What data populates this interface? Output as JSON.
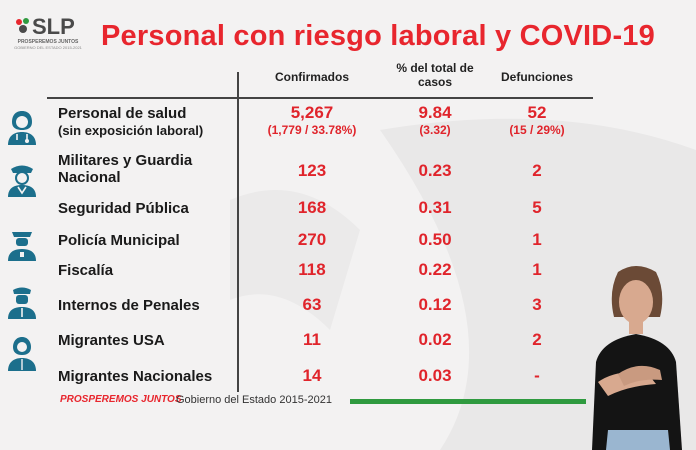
{
  "title": "Personal con riesgo laboral y COVID-19",
  "logo": {
    "name": "SLP",
    "tagline": "PROSPEREMOS JUNTOS",
    "subline": "GOBIERNO DEL ESTADO 2015-2021"
  },
  "columns": {
    "confirmados": "Confirmados",
    "porcentaje": "% del total de casos",
    "defunciones": "Defunciones"
  },
  "rows": [
    {
      "label": "Personal de salud",
      "sublabel": "(sin exposición laboral)",
      "confirmados": "5,267",
      "confirmados_sub": "(1,779 / 33.78%)",
      "porcentaje": "9.84",
      "porcentaje_sub": "(3.32)",
      "defunciones": "52",
      "defunciones_sub": "(15 / 29%)",
      "icon": "health-worker-icon"
    },
    {
      "label": "Militares y Guardia",
      "sublabel": "Nacional",
      "confirmados": "123",
      "porcentaje": "0.23",
      "defunciones": "2",
      "icon": "military-icon"
    },
    {
      "label": "Seguridad Pública",
      "confirmados": "168",
      "porcentaje": "0.31",
      "defunciones": "5"
    },
    {
      "label": "Policía Municipal",
      "confirmados": "270",
      "porcentaje": "0.50",
      "defunciones": "1",
      "icon": "police-icon"
    },
    {
      "label": "Fiscalía",
      "confirmados": "118",
      "porcentaje": "0.22",
      "defunciones": "1"
    },
    {
      "label": "Internos de Penales",
      "confirmados": "63",
      "porcentaje": "0.12",
      "defunciones": "3",
      "icon": "prison-guard-icon"
    },
    {
      "label": "Migrantes USA",
      "confirmados": "11",
      "porcentaje": "0.02",
      "defunciones": "2",
      "icon": "migrant-icon"
    },
    {
      "label": "Migrantes Nacionales",
      "confirmados": "14",
      "porcentaje": "0.03",
      "defunciones": "-"
    }
  ],
  "footer": {
    "brand": "PROSPEREMOS JUNTOS",
    "government": "Gobierno del Estado 2015-2021"
  },
  "colors": {
    "title": "#e8262e",
    "values": "#e0242b",
    "icons": "#1c6f8c",
    "footer_line": "#2f9a3f"
  }
}
